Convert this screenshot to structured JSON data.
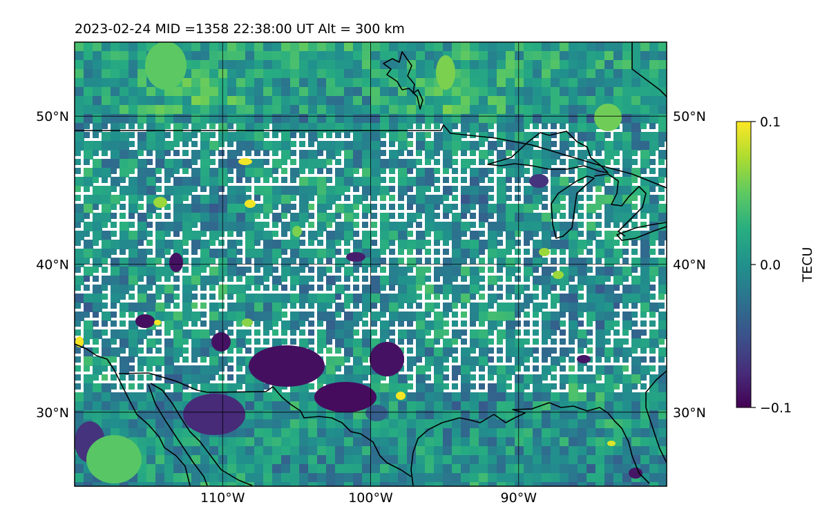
{
  "title": "2023-02-24  MID =1358    22:38:00  UT  Alt = 300 km",
  "map": {
    "projection": "plate-carree",
    "lon_range": [
      -120,
      -80
    ],
    "lat_range": [
      25,
      55
    ],
    "colormap": "viridis",
    "gridlines": true,
    "lat_ticks": [
      {
        "value": 50,
        "label": "50°N"
      },
      {
        "value": 40,
        "label": "40°N"
      },
      {
        "value": 30,
        "label": "30°N"
      }
    ],
    "lon_ticks": [
      {
        "value": -110,
        "label": "110°W"
      },
      {
        "value": -100,
        "label": "100°W"
      },
      {
        "value": -90,
        "label": "90°W"
      }
    ],
    "colors": {
      "coastline": "#000000",
      "gridline": "#000000"
    }
  },
  "colorbar": {
    "label": "TECU",
    "min": -0.1,
    "max": 0.1,
    "ticks": [
      {
        "value": 0.1,
        "label": "0.1"
      },
      {
        "value": 0.0,
        "label": "0.0"
      },
      {
        "value": -0.1,
        "label": "−0.1"
      }
    ]
  }
}
